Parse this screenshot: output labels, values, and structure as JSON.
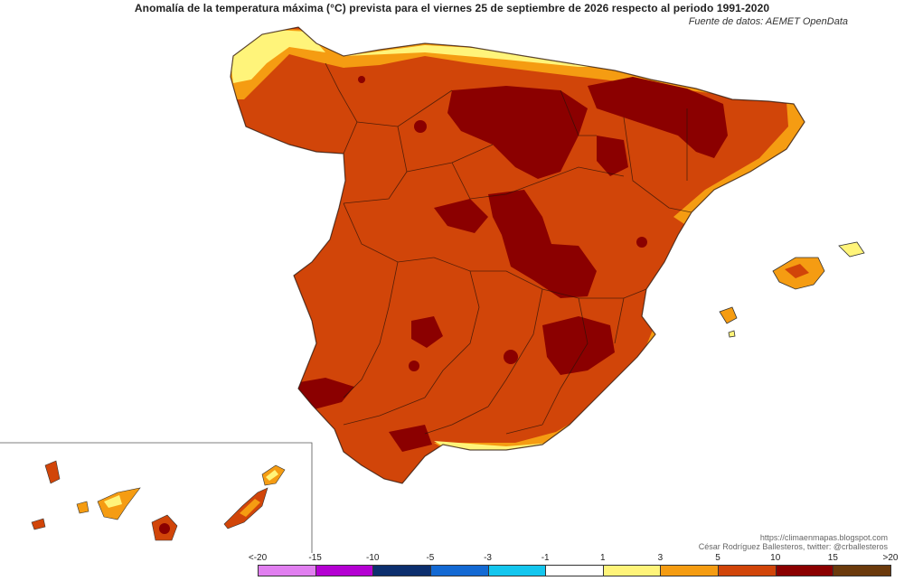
{
  "title": "Anomalía de la temperatura máxima (°C) prevista para el viernes 25 de septiembre de 2026 respecto al periodo 1991-2020",
  "source": "Fuente de datos: AEMET OpenData",
  "credits": {
    "line1": "https://climaenmapas.blogspot.com",
    "line2": "César Rodríguez Ballesteros, twitter: @crballesteros"
  },
  "legend": {
    "labels": [
      "<-20",
      "-15",
      "-10",
      "-5",
      "-3",
      "-1",
      "1",
      "3",
      "5",
      "10",
      "15",
      ">20"
    ],
    "colors": [
      "#e17ff0",
      "#b400d2",
      "#0c2f6e",
      "#1369d3",
      "#14c6ee",
      "#ffffff",
      "#fff47a",
      "#f59c12",
      "#d14509",
      "#8b0000",
      "#6b3a0c"
    ]
  },
  "map_colors": {
    "base": "#d14509",
    "hot": "#8b0000",
    "warm": "#f59c12",
    "mild": "#fff47a",
    "border": "#2a1208"
  }
}
